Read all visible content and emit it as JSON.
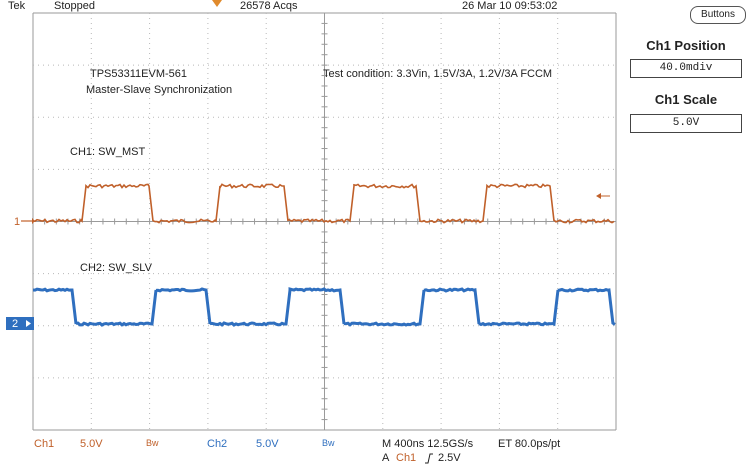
{
  "top_bar": {
    "brand": "Tek",
    "run_state": "Stopped",
    "acquisitions": "26578 Acqs",
    "datetime": "26 Mar 10 09:53:02"
  },
  "annotations": {
    "board": "TPS53311EVM-561",
    "subtitle": "Master-Slave Synchronization",
    "test_condition": "Test condition: 3.3Vin, 1.5V/3A, 1.2V/3A FCCM",
    "ch1_label": "CH1: SW_MST",
    "ch2_label": "CH2: SW_SLV"
  },
  "channels": {
    "ch1": {
      "marker": "1",
      "color": "#c0602a"
    },
    "ch2": {
      "marker": "2",
      "color": "#2f6fbf"
    }
  },
  "bottom_bar": {
    "ch1_name": "Ch1",
    "ch1_scale": "5.0V",
    "ch1_bw": "Bw",
    "ch2_name": "Ch2",
    "ch2_scale": "5.0V",
    "ch2_bw": "Bw",
    "timebase": "M 400ns 12.5GS/s",
    "record": "ET 80.0ps/pt",
    "trigger_prefix": "A",
    "trigger_source": "Ch1",
    "trigger_slope_icon": "rising-edge-icon",
    "trigger_level": "2.5V"
  },
  "side_panel": {
    "buttons_label": "Buttons",
    "ch1_position_title": "Ch1 Position",
    "ch1_position_value": "40.0mdiv",
    "ch1_scale_title": "Ch1 Scale",
    "ch1_scale_value": "5.0V"
  }
}
